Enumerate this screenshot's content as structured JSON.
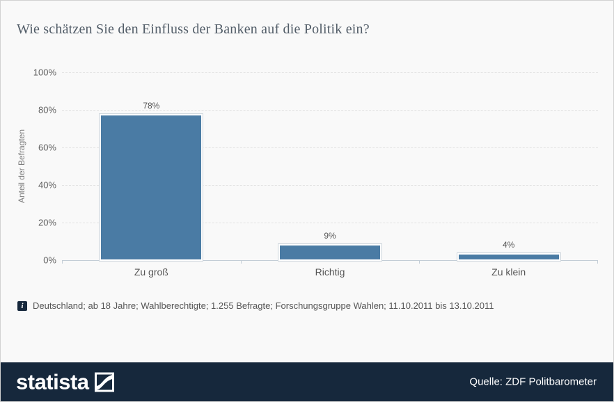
{
  "chart_data": {
    "type": "bar",
    "title": "Wie schätzen Sie den Einfluss der Banken auf die Politik ein?",
    "categories": [
      "Zu groß",
      "Richtig",
      "Zu klein"
    ],
    "values": [
      78,
      9,
      4
    ],
    "value_labels": [
      "78%",
      "9%",
      "4%"
    ],
    "xlabel": "",
    "ylabel": "Anteil der Befragten",
    "ylim": [
      0,
      100
    ],
    "yticks": [
      0,
      20,
      40,
      60,
      80,
      100
    ],
    "ytick_labels": [
      "0%",
      "20%",
      "40%",
      "60%",
      "80%",
      "100%"
    ],
    "grid": "horizontal-dashed",
    "legend_position": "none",
    "bar_color": "#4a7ba4"
  },
  "footnote": {
    "icon_glyph": "i",
    "text": "Deutschland; ab 18 Jahre; Wahlberechtigte; 1.255 Befragte; Forschungsgruppe Wahlen; 11.10.2011 bis 13.10.2011"
  },
  "footer": {
    "brand": "statista",
    "source": "Quelle: ZDF Politbarometer",
    "background_color": "#16283c"
  }
}
